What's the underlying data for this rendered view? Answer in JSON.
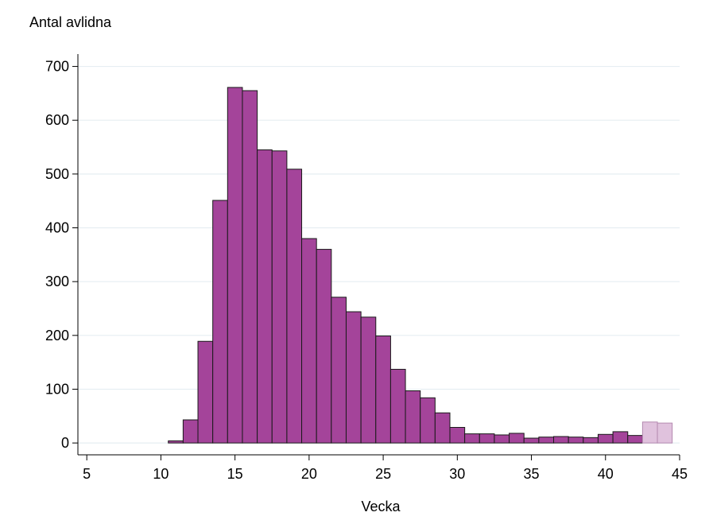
{
  "chart_data": {
    "type": "bar",
    "ylabel": "Antal avlidna",
    "xlabel": "Vecka",
    "xlim": [
      4.4,
      45
    ],
    "ylim": [
      -22,
      723
    ],
    "x_ticks": [
      "5",
      "10",
      "15",
      "20",
      "25",
      "30",
      "35",
      "40",
      "45"
    ],
    "y_ticks": [
      "0",
      "100",
      "200",
      "300",
      "400",
      "500",
      "600",
      "700"
    ],
    "grid": true,
    "colors": {
      "bar": "#a4449a",
      "bar_preliminary": "#e0c2dd",
      "bar_outline": "#1a1a1a",
      "grid": "#e6eef2"
    },
    "series": [
      {
        "weeks": [
          11,
          12,
          13,
          14,
          15,
          16,
          17,
          18,
          19,
          20,
          21,
          22,
          23,
          24,
          25,
          26,
          27,
          28,
          29,
          30,
          31,
          32,
          33,
          34,
          35,
          36,
          37,
          38,
          39,
          40,
          41,
          42
        ],
        "values": [
          4,
          43,
          189,
          451,
          661,
          655,
          545,
          543,
          509,
          380,
          360,
          271,
          244,
          234,
          199,
          137,
          97,
          84,
          56,
          29,
          17,
          17,
          15,
          18,
          9,
          11,
          12,
          11,
          10,
          16,
          21,
          14
        ]
      },
      {
        "weeks": [
          43,
          44
        ],
        "values": [
          39,
          37
        ]
      }
    ]
  }
}
